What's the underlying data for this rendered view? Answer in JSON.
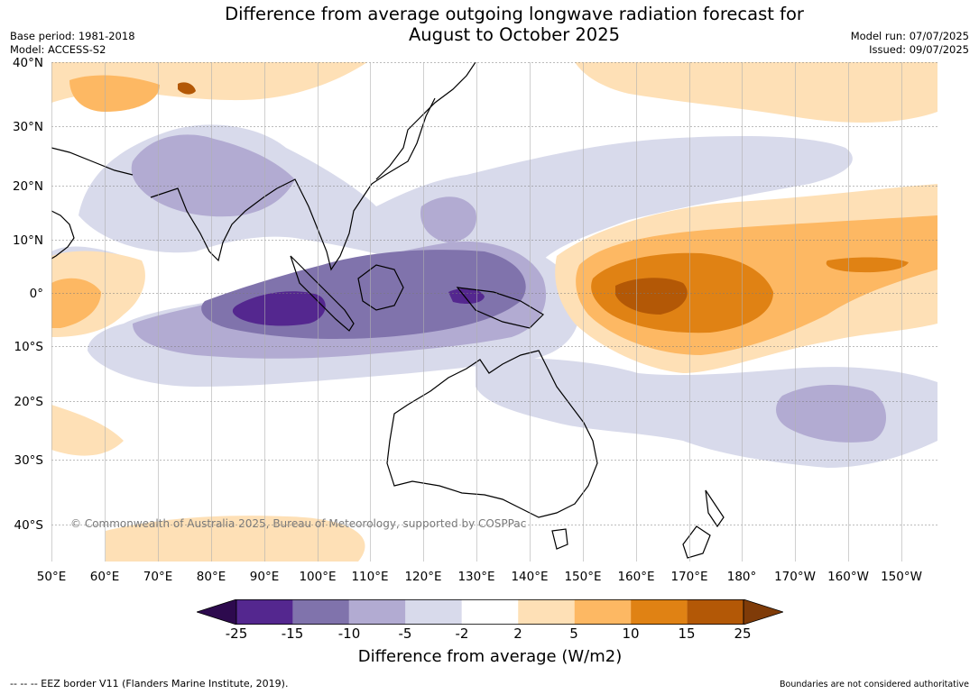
{
  "title": {
    "line1": "Difference from average outgoing longwave radiation forecast for",
    "line2": "August to October 2025"
  },
  "meta": {
    "base_period": "Base period: 1981-2018",
    "model": "Model: ACCESS-S2",
    "model_run": "Model run: 07/07/2025",
    "issued": "Issued: 09/07/2025"
  },
  "latitude_labels": [
    "40°N",
    "30°N",
    "20°N",
    "10°N",
    "0°",
    "10°S",
    "20°S",
    "30°S",
    "40°S"
  ],
  "longitude_labels": [
    "50°E",
    "60°E",
    "70°E",
    "80°E",
    "90°E",
    "100°E",
    "110°E",
    "120°E",
    "130°E",
    "140°E",
    "150°E",
    "160°E",
    "170°E",
    "180°",
    "170°W",
    "160°W",
    "150°W"
  ],
  "copyright": "© Commonwealth of Australia 2025, Bureau of Meteorology, supported by COSPPac",
  "colorbar": {
    "ticks": [
      "-25",
      "-15",
      "-10",
      "-5",
      "-2",
      "2",
      "5",
      "10",
      "15",
      "25"
    ],
    "colors": [
      "#2d0a4e",
      "#54278f",
      "#8073ac",
      "#b2abd2",
      "#d8daeb",
      "#ffffff",
      "#fee0b6",
      "#fdb863",
      "#e08214",
      "#b35806",
      "#7f3b08"
    ],
    "label": "Difference from average (W/m2)"
  },
  "footer": {
    "eez_note": "-- -- -- EEZ border V11 (Flanders Marine Institute, 2019).",
    "boundaries_note": "Boundaries are not considered authoritative"
  }
}
